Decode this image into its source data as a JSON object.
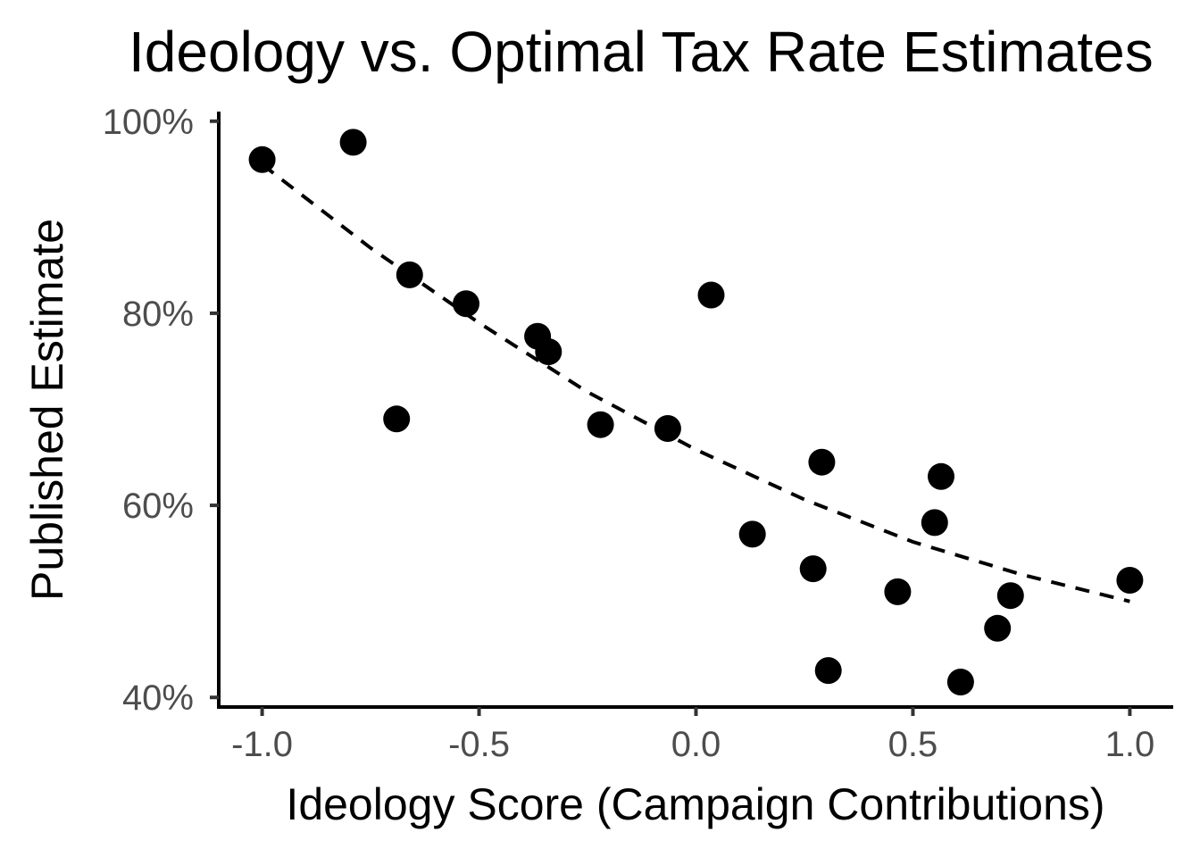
{
  "chart_data": {
    "type": "scatter",
    "title": "Ideology vs. Optimal Tax Rate Estimates",
    "xlabel": "Ideology Score (Campaign Contributions)",
    "ylabel": "Published Estimate",
    "xlim": [
      -1.1,
      1.1
    ],
    "ylim": [
      39,
      101
    ],
    "x_ticks": [
      -1.0,
      -0.5,
      0.0,
      0.5,
      1.0
    ],
    "x_tick_labels": [
      "-1.0",
      "-0.5",
      "0.0",
      "0.5",
      "1.0"
    ],
    "y_ticks": [
      40,
      60,
      80,
      100
    ],
    "y_tick_labels": [
      "40%",
      "60%",
      "80%",
      "100%"
    ],
    "grid": false,
    "legend": "none",
    "point_color": "#000000",
    "points": [
      {
        "x": -1.0,
        "y": 96.0
      },
      {
        "x": -0.79,
        "y": 97.8
      },
      {
        "x": -0.66,
        "y": 84.0
      },
      {
        "x": -0.69,
        "y": 69.0
      },
      {
        "x": -0.53,
        "y": 81.0
      },
      {
        "x": -0.365,
        "y": 77.6
      },
      {
        "x": -0.34,
        "y": 76.0
      },
      {
        "x": -0.22,
        "y": 68.4
      },
      {
        "x": -0.065,
        "y": 68.0
      },
      {
        "x": 0.035,
        "y": 81.9
      },
      {
        "x": 0.13,
        "y": 57.0
      },
      {
        "x": 0.27,
        "y": 53.4
      },
      {
        "x": 0.29,
        "y": 64.5
      },
      {
        "x": 0.305,
        "y": 42.8
      },
      {
        "x": 0.465,
        "y": 51.0
      },
      {
        "x": 0.55,
        "y": 58.2
      },
      {
        "x": 0.565,
        "y": 63.0
      },
      {
        "x": 0.61,
        "y": 41.6
      },
      {
        "x": 0.695,
        "y": 47.2
      },
      {
        "x": 0.725,
        "y": 50.6
      },
      {
        "x": 1.0,
        "y": 52.2
      }
    ],
    "trend_line": {
      "style": "dashed",
      "x": [
        -1.0,
        -0.75,
        -0.5,
        -0.25,
        0.0,
        0.25,
        0.5,
        0.75,
        1.0
      ],
      "y": [
        95.5,
        86.8,
        79.0,
        71.8,
        65.8,
        60.6,
        56.2,
        52.8,
        50.0
      ]
    }
  }
}
